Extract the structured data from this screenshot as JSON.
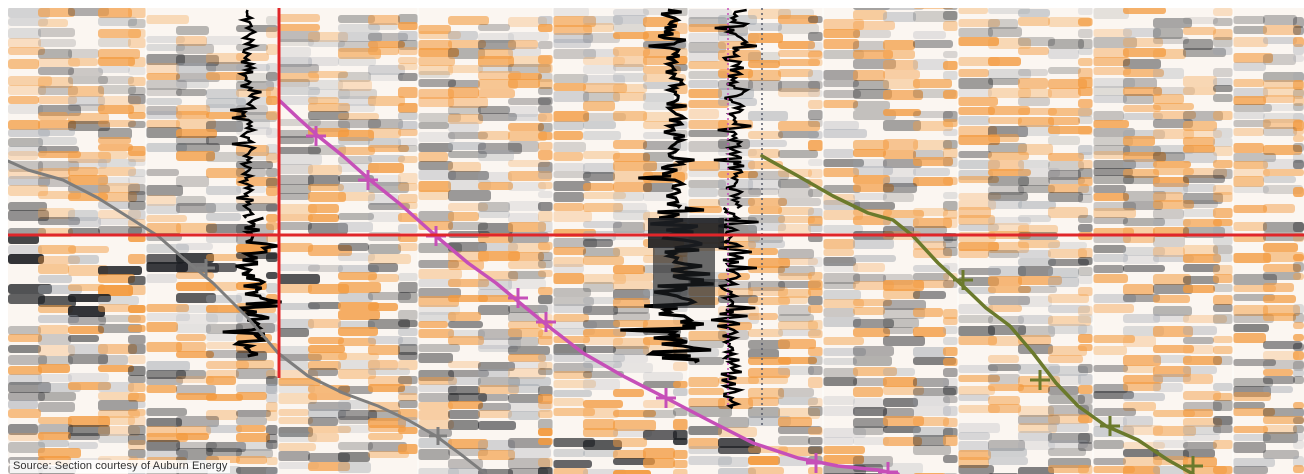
{
  "source_credit": "Source: Section courtesy of Auburn Energy",
  "colors": {
    "background": "#ffffff",
    "peak_orange": "#f39a3e",
    "trough_dark": "#1c1e22",
    "crosshair_red": "#e0262a",
    "well_path_grey": "#7d7d7d",
    "well_path_magenta": "#c64fb8",
    "well_path_olive": "#6b7a2c",
    "well_log_black": "#000000",
    "well_marker_dotted": "#555a6a"
  },
  "elements": {
    "seismic_section": "seismic amplitude section",
    "crosshair": "horizontal and vertical red crosshair lines",
    "well_paths": [
      "grey well path",
      "magenta well path",
      "olive well path"
    ],
    "well_logs": [
      "left well log",
      "centre well log",
      "centre-right well log"
    ]
  }
}
